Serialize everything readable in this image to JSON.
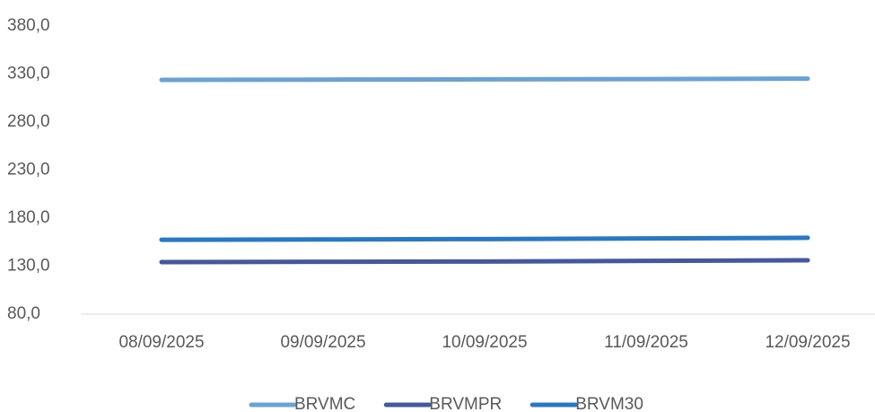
{
  "chart_data": {
    "type": "line",
    "categories": [
      "08/09/2025",
      "09/09/2025",
      "10/09/2025",
      "11/09/2025",
      "12/09/2025"
    ],
    "series": [
      {
        "name": "BRVMC",
        "color": "#6aa2d6",
        "values": [
          323.9,
          324.2,
          324.5,
          324.8,
          325.2
        ]
      },
      {
        "name": "BRVMPR",
        "color": "#44589e",
        "values": [
          134.2,
          134.5,
          134.8,
          135.5,
          136.1
        ]
      },
      {
        "name": "BRVM30",
        "color": "#2878c8",
        "values": [
          157.5,
          157.8,
          158.2,
          158.8,
          159.5
        ]
      }
    ],
    "ylim": [
      80,
      380
    ],
    "yticks": [
      {
        "value": 80,
        "label": "80,0"
      },
      {
        "value": 130,
        "label": "130,0"
      },
      {
        "value": 180,
        "label": "180,0"
      },
      {
        "value": 230,
        "label": "230,0"
      },
      {
        "value": 280,
        "label": "280,0"
      },
      {
        "value": 330,
        "label": "330,0"
      },
      {
        "value": 380,
        "label": "380,0"
      }
    ],
    "grid": false,
    "legend": "bottom"
  }
}
